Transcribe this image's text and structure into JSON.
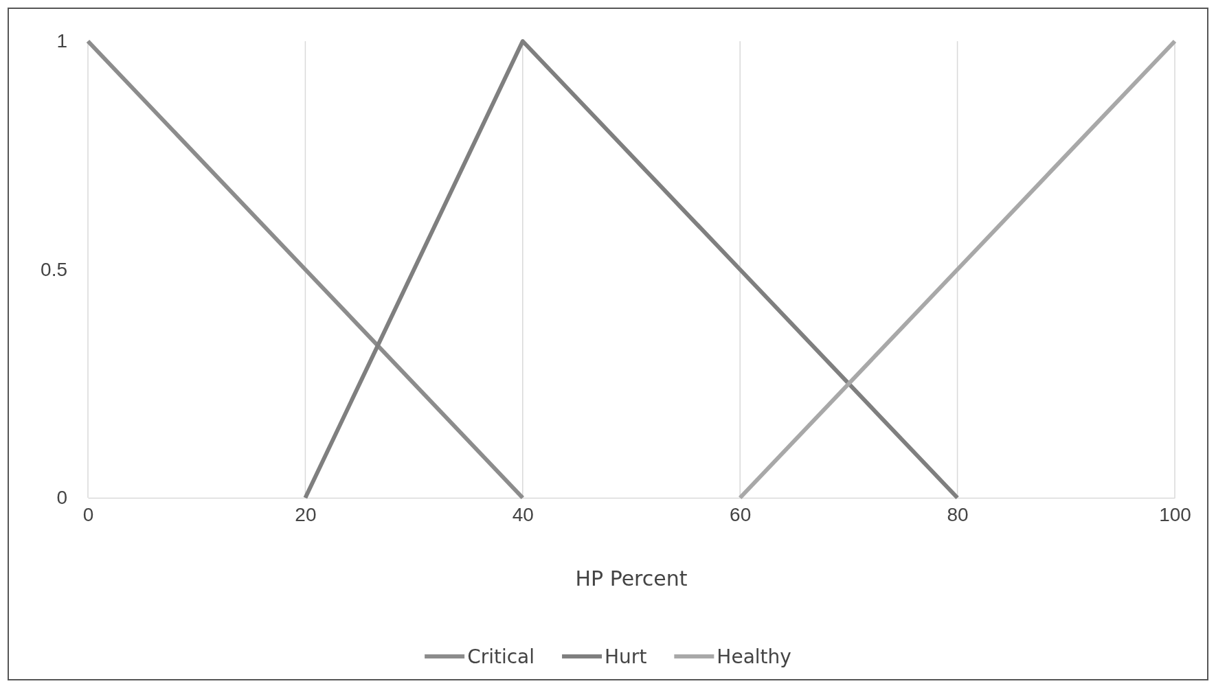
{
  "chart_data": {
    "type": "line",
    "xlabel": "HP Percent",
    "x": [
      0,
      20,
      40,
      60,
      80,
      100
    ],
    "series": [
      {
        "name": "Critical",
        "color": "#8c8c8c",
        "values": [
          1,
          0.5,
          0,
          null,
          null,
          null
        ]
      },
      {
        "name": "Hurt",
        "color": "#7f7f7f",
        "values": [
          null,
          0,
          1,
          0.5,
          0,
          null
        ]
      },
      {
        "name": "Healthy",
        "color": "#a8a8a8",
        "values": [
          null,
          null,
          null,
          0,
          0.5,
          1
        ]
      }
    ],
    "xlim": [
      0,
      100
    ],
    "xticks": [
      0,
      20,
      40,
      60,
      80,
      100
    ],
    "ylim": [
      0,
      1
    ],
    "yticks": [
      0,
      0.5,
      1
    ],
    "grid": "x",
    "legend": "bottom",
    "marker": "none",
    "line_style": "solid"
  }
}
